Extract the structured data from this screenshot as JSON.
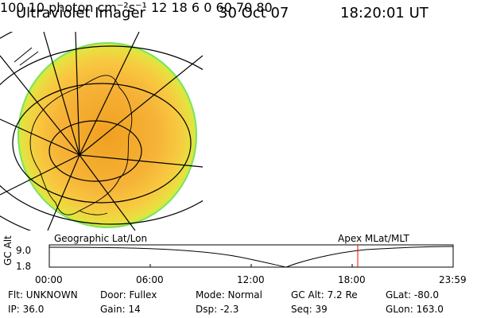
{
  "header": {
    "instrument": "Ultraviolet Imager",
    "date": "30 Oct 07",
    "time": "18:20:01 UT"
  },
  "left_panel": {
    "label": "Geographic Lat/Lon",
    "image": "auroral-uv-emission-geographic-projection"
  },
  "right_panel": {
    "label": "Apex  MLat/MLT",
    "mlt_labels": [
      "12",
      "18",
      "6",
      "0"
    ],
    "mlat_labels": [
      "60",
      "70",
      "80"
    ],
    "image": "auroral-uv-emission-polar-plot"
  },
  "colorbar": {
    "unit_label": "photon cm⁻²s⁻¹",
    "ticks": [
      "100",
      "10"
    ],
    "scale": "log",
    "colors": [
      "#200020",
      "#500050",
      "#7a0040",
      "#b00000",
      "#e00000",
      "#ff3000",
      "#ff8000",
      "#ffb000",
      "#ffd700",
      "#ffff00",
      "#c8ff00",
      "#80ff00",
      "#00ff40",
      "#00ffd0",
      "#00c0ff",
      "#a0e0ff",
      "#e0f8ff"
    ]
  },
  "timeline": {
    "ylabel": "GC Alt",
    "yticks": [
      "9.0",
      "1.8"
    ],
    "xticks": [
      "00:00",
      "06:00",
      "12:00",
      "18:00",
      "23:59"
    ],
    "marker_time": "18:20"
  },
  "info": {
    "filter": "Flt: UNKNOWN",
    "ip": "IP: 36.0",
    "door": "Door: Fullex",
    "gain": "Gain: 14",
    "mode": "Mode: Normal",
    "dsp": "Dsp:    -2.3",
    "gc_alt": "GC Alt: 7.2 Re",
    "seq": "Seq: 39",
    "glat": "GLat: -80.0",
    "glon": "GLon: 163.0"
  },
  "colors": {
    "aurora_fill": "#f2a72e",
    "aurora_edge": "#d8f23a",
    "marker": "#ff0000"
  }
}
